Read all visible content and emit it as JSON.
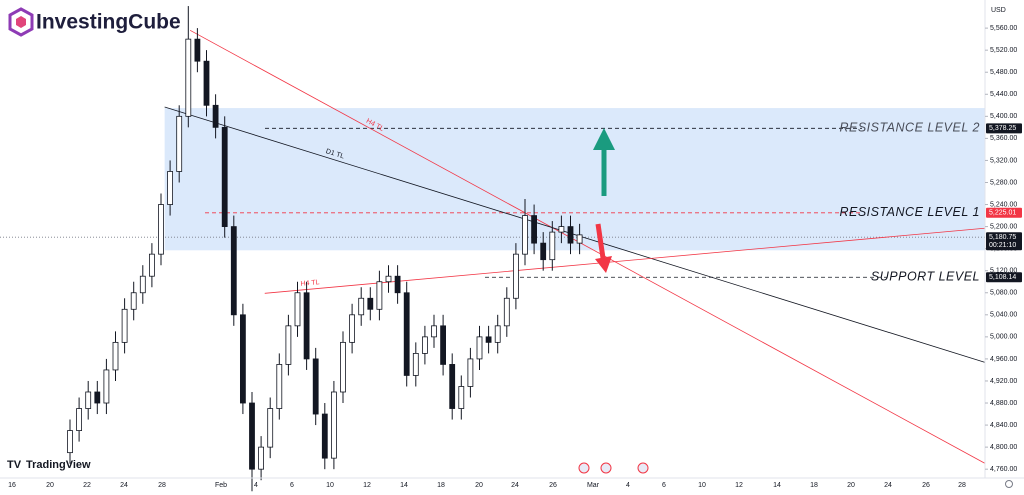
{
  "header": {
    "brand": "InvestingCube",
    "currency": "USD",
    "watermark": "TradingView"
  },
  "chart_data": {
    "type": "candlestick",
    "open": [
      4790,
      4830,
      4870,
      4900,
      4880,
      4940,
      4990,
      5050,
      5080,
      5110,
      5150,
      5240,
      5300,
      5400,
      5540,
      5500,
      5420,
      5380,
      5200,
      5040,
      4880,
      4760,
      4800,
      4870,
      4950,
      5020,
      5080,
      4960,
      4860,
      4780,
      4900,
      4990,
      5040,
      5070,
      5050,
      5100,
      5110,
      5080,
      4930,
      4970,
      5000,
      5020,
      4950,
      4870,
      4910,
      4960,
      5000,
      4990,
      5020,
      5070,
      5150,
      5220,
      5170,
      5140,
      5190,
      5200,
      5170
    ],
    "high": [
      4850,
      4890,
      4920,
      4920,
      4960,
      5010,
      5070,
      5100,
      5130,
      5170,
      5260,
      5320,
      5420,
      5600,
      5560,
      5520,
      5440,
      5400,
      5220,
      5060,
      4900,
      4820,
      4890,
      4970,
      5040,
      5100,
      5100,
      4980,
      4880,
      4920,
      5010,
      5060,
      5090,
      5090,
      5120,
      5130,
      5130,
      5100,
      4990,
      5020,
      5040,
      5040,
      4970,
      4930,
      4980,
      5020,
      5020,
      5040,
      5090,
      5170,
      5250,
      5240,
      5190,
      5210,
      5220,
      5220,
      5205
    ],
    "low": [
      4770,
      4810,
      4850,
      4860,
      4860,
      4920,
      4970,
      5030,
      5060,
      5090,
      5130,
      5220,
      5280,
      5380,
      5480,
      5400,
      5360,
      5180,
      5020,
      4860,
      4720,
      4740,
      4780,
      4850,
      4930,
      5000,
      4940,
      4840,
      4760,
      4760,
      4880,
      4970,
      5020,
      5030,
      5030,
      5080,
      5060,
      4910,
      4910,
      4950,
      4980,
      4930,
      4850,
      4850,
      4890,
      4940,
      4970,
      4970,
      5000,
      5050,
      5130,
      5150,
      5120,
      5120,
      5170,
      5150,
      5150
    ],
    "close": [
      4830,
      4870,
      4900,
      4880,
      4940,
      4990,
      5050,
      5080,
      5110,
      5150,
      5240,
      5300,
      5400,
      5540,
      5500,
      5420,
      5380,
      5200,
      5040,
      4880,
      4760,
      4800,
      4870,
      4950,
      5020,
      5080,
      4960,
      4860,
      4780,
      4900,
      4990,
      5040,
      5070,
      5050,
      5100,
      5110,
      5080,
      4930,
      4970,
      5000,
      5020,
      4950,
      4870,
      4910,
      4960,
      5000,
      4990,
      5020,
      5070,
      5150,
      5220,
      5170,
      5140,
      5190,
      5200,
      5170,
      5185
    ],
    "up_color": "#131722",
    "down_color": "#131722",
    "x_labels": [
      "16",
      "20",
      "22",
      "24",
      "28",
      "Feb",
      "4",
      "6",
      "10",
      "12",
      "14",
      "18",
      "20",
      "24",
      "26",
      "Mar",
      "4",
      "6",
      "10",
      "12",
      "14",
      "18",
      "20",
      "24",
      "26",
      "28"
    ],
    "ylim": [
      4744,
      5611
    ],
    "yticks": [
      {
        "value": 4760,
        "label": "4,760.00"
      },
      {
        "value": 4800,
        "label": "4,800.00"
      },
      {
        "value": 4840,
        "label": "4,840.00"
      },
      {
        "value": 4880,
        "label": "4,880.00"
      },
      {
        "value": 4920,
        "label": "4,920.00"
      },
      {
        "value": 4960,
        "label": "4,960.00"
      },
      {
        "value": 5000,
        "label": "5,000.00"
      },
      {
        "value": 5040,
        "label": "5,040.00"
      },
      {
        "value": 5080,
        "label": "5,080.00"
      },
      {
        "value": 5120,
        "label": "5,120.00"
      },
      {
        "value": 5160,
        "label": "5,160.00"
      },
      {
        "value": 5200,
        "label": "5,200.00"
      },
      {
        "value": 5240,
        "label": "5,240.00"
      },
      {
        "value": 5280,
        "label": "5,280.00"
      },
      {
        "value": 5320,
        "label": "5,320.00"
      },
      {
        "value": 5360,
        "label": "5,360.00"
      },
      {
        "value": 5400,
        "label": "5,400.00"
      },
      {
        "value": 5440,
        "label": "5,440.00"
      },
      {
        "value": 5480,
        "label": "5,480.00"
      },
      {
        "value": 5520,
        "label": "5,520.00"
      },
      {
        "value": 5560,
        "label": "5,560.00"
      }
    ],
    "zone": {
      "start": 10.4,
      "low": 5157,
      "high": 5415,
      "color": "#dbe9fb"
    },
    "trendlines": [
      {
        "label": "H4 TL",
        "color": "#f23645",
        "start": [
          13.2,
          5556
        ],
        "end": [
          100.5,
          4771
        ]
      },
      {
        "label": "D1 TL",
        "color": "#131722",
        "start": [
          10.4,
          5417
        ],
        "end": [
          100.5,
          4954
        ]
      },
      {
        "label": "H4 TL",
        "color": "#f23645",
        "start": [
          21.4,
          5079
        ],
        "end": [
          100.5,
          5197
        ]
      }
    ],
    "levels": [
      {
        "name": "RESISTANCE LEVEL 2",
        "price": {
          "value": 5378.25,
          "label": "5,378.25"
        },
        "color": "#131722"
      },
      {
        "name": "RESISTANCE LEVEL 1",
        "price": {
          "value": 5225.01,
          "label": "5,225.01"
        },
        "color": "#f23645"
      },
      {
        "name": "SUPPORT LEVEL",
        "price": {
          "value": 5108.14,
          "label": "5,108.14"
        },
        "color": "#131722"
      }
    ],
    "last_price": {
      "value": 5180.75,
      "label": "5,180.75"
    },
    "countdown": "00:21:10"
  }
}
